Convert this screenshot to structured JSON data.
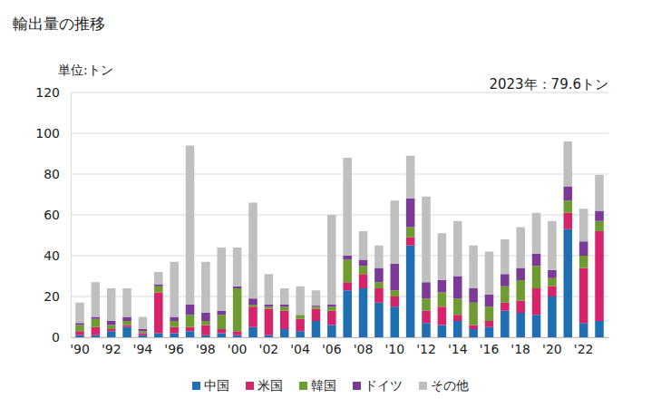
{
  "chart_data": {
    "type": "bar",
    "stacked": true,
    "title": "輸出量の推移",
    "y_label": "単位:トン",
    "annotation": "2023年：79.6トン",
    "categories": [
      "'90",
      null,
      "'92",
      null,
      "'94",
      null,
      "'96",
      null,
      "'98",
      null,
      "'00",
      null,
      "'02",
      null,
      "'04",
      null,
      "'06",
      null,
      "'08",
      null,
      "'10",
      null,
      "'12",
      null,
      "'14",
      null,
      "'16",
      null,
      "'18",
      null,
      "'20",
      null,
      "'22",
      null
    ],
    "series": [
      {
        "name": "中国",
        "color": "#1f6fb2",
        "values": [
          1,
          1,
          3,
          5,
          1,
          2,
          2,
          3,
          1,
          2,
          1,
          5,
          1,
          4,
          3,
          8,
          6,
          23,
          24,
          17,
          15,
          45,
          7,
          6,
          8,
          4,
          5,
          13,
          12,
          11,
          20,
          53,
          7,
          8
        ]
      },
      {
        "name": "米国",
        "color": "#d6246b",
        "values": [
          2,
          4,
          1,
          1,
          1,
          20,
          3,
          2,
          5,
          2,
          2,
          10,
          13,
          9,
          6,
          6,
          7,
          4,
          7,
          7,
          5,
          4,
          6,
          9,
          3,
          2,
          3,
          4,
          6,
          13,
          5,
          8,
          27,
          44
        ]
      },
      {
        "name": "韓国",
        "color": "#6f9b33",
        "values": [
          3,
          4,
          2,
          2,
          1,
          3,
          3,
          6,
          2,
          7,
          21,
          1,
          1,
          2,
          2,
          1,
          2,
          11,
          4,
          3,
          3,
          5,
          6,
          7,
          8,
          11,
          7,
          8,
          10,
          11,
          4,
          6,
          6,
          5
        ]
      },
      {
        "name": "ドイツ",
        "color": "#7b3a96",
        "values": [
          1,
          1,
          2,
          2,
          1,
          1,
          2,
          5,
          4,
          2,
          1,
          3,
          1,
          1,
          0,
          0.5,
          1,
          2,
          3,
          7,
          13,
          14,
          8,
          6,
          11,
          7,
          6,
          6,
          6,
          6,
          4,
          7,
          7,
          5
        ]
      },
      {
        "name": "その他",
        "color": "#bfbfbf",
        "values": [
          10,
          17,
          16,
          14,
          6,
          6,
          27,
          78,
          25,
          31,
          19,
          47,
          15,
          8,
          14,
          7.5,
          44,
          48,
          14,
          11,
          31,
          21,
          42,
          23,
          27,
          21,
          21,
          17,
          20,
          20,
          24,
          22,
          16,
          17.6
        ]
      }
    ],
    "ylim": [
      0,
      120
    ],
    "yticks": [
      0,
      20,
      40,
      60,
      80,
      100,
      120
    ],
    "grid": true,
    "legend": "bottom"
  }
}
